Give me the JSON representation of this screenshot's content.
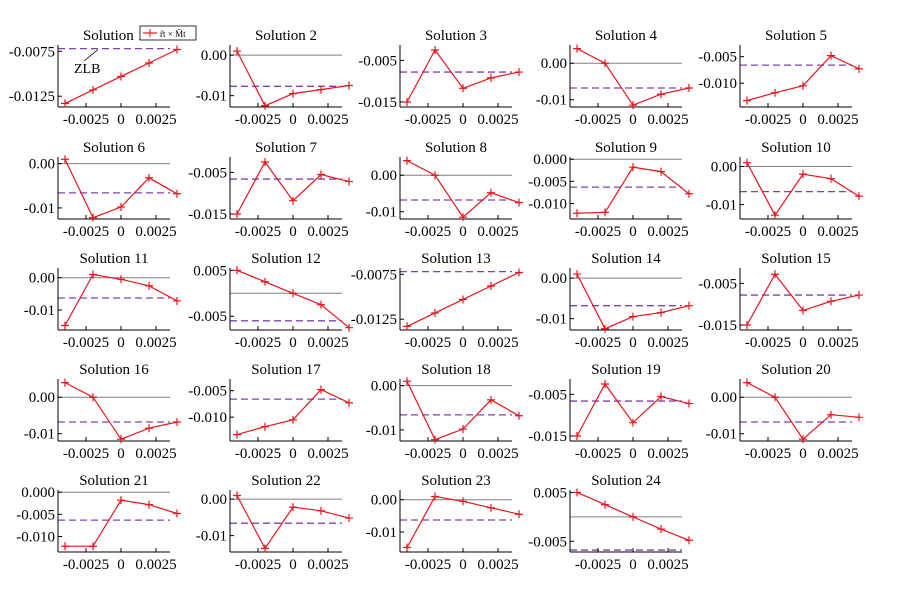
{
  "chart_data": {
    "type": "line",
    "layout": "grid of small multiples, 5 columns",
    "grid": false,
    "colors": {
      "series": "#e8151b",
      "zlb": "#8040b0",
      "zero_line": "#808080",
      "axis": "#000000"
    },
    "legend": {
      "text": "r̃t × M̃t",
      "location": "Solution 1 panel, top-right"
    },
    "annotation": {
      "text": "ZLB",
      "panel": 0
    },
    "x": [
      -0.004,
      -0.002,
      0.0,
      0.002,
      0.004
    ],
    "panels": [
      {
        "title": "Solution 1",
        "y": [
          -0.0133,
          -0.0118,
          -0.0103,
          -0.0088,
          -0.0073
        ],
        "zlb": -0.0072,
        "ylim": [
          -0.0137,
          -0.0068
        ],
        "yticks": [
          -0.0075,
          -0.0125
        ],
        "ytick_labels": [
          "-0.0075",
          "-0.0125"
        ],
        "xticks": [
          -0.0025,
          0,
          0.0025
        ],
        "xtick_labels": [
          "-0.0025",
          "0",
          "0.0025"
        ]
      },
      {
        "title": "Solution 2",
        "y": [
          0.001,
          -0.0125,
          -0.0095,
          -0.0085,
          -0.0075
        ],
        "zlb": -0.0077,
        "ylim": [
          -0.0128,
          0.0025
        ],
        "yticks": [
          0.0,
          -0.01
        ],
        "ytick_labels": [
          "0.00",
          "-0.01"
        ],
        "xticks": [
          -0.0025,
          0,
          0.0025
        ],
        "xtick_labels": [
          "-0.0025",
          "0",
          "0.0025"
        ]
      },
      {
        "title": "Solution 3",
        "y": [
          -0.015,
          -0.0025,
          -0.0117,
          -0.0092,
          -0.0078
        ],
        "zlb": -0.0078,
        "ylim": [
          -0.0162,
          -0.0013
        ],
        "yticks": [
          -0.005,
          -0.015
        ],
        "ytick_labels": [
          "-0.005",
          "-0.015"
        ],
        "xticks": [
          -0.0025,
          0,
          0.0025
        ],
        "xtick_labels": [
          "-0.0025",
          "0",
          "0.0025"
        ]
      },
      {
        "title": "Solution 4",
        "y": [
          0.004,
          0.0,
          -0.0115,
          -0.0085,
          -0.0068
        ],
        "zlb": -0.0068,
        "ylim": [
          -0.012,
          0.005
        ],
        "yticks": [
          0.0,
          -0.01
        ],
        "ytick_labels": [
          "0.00",
          "-0.01"
        ],
        "xticks": [
          -0.0025,
          0,
          0.0025
        ],
        "xtick_labels": [
          "-0.0025",
          "0",
          "0.0025"
        ]
      },
      {
        "title": "Solution 5",
        "y": [
          -0.0133,
          -0.0118,
          -0.0105,
          -0.0048,
          -0.0073
        ],
        "zlb": -0.0066,
        "ylim": [
          -0.0145,
          -0.0028
        ],
        "yticks": [
          -0.005,
          -0.01
        ],
        "ytick_labels": [
          "-0.005",
          "-0.010"
        ],
        "xticks": [
          -0.0025,
          0,
          0.0025
        ],
        "xtick_labels": [
          "-0.0025",
          "0",
          "0.0025"
        ]
      },
      {
        "title": "Solution 6",
        "y": [
          0.001,
          -0.0122,
          -0.0098,
          -0.0032,
          -0.0068
        ],
        "zlb": -0.0066,
        "ylim": [
          -0.0125,
          0.0015
        ],
        "yticks": [
          0.0,
          -0.01
        ],
        "ytick_labels": [
          "0.00",
          "-0.01"
        ],
        "xticks": [
          -0.0025,
          0,
          0.0025
        ],
        "xtick_labels": [
          "-0.0025",
          "0",
          "0.0025"
        ]
      },
      {
        "title": "Solution 7",
        "y": [
          -0.015,
          -0.0025,
          -0.0118,
          -0.0055,
          -0.0072
        ],
        "zlb": -0.0066,
        "ylim": [
          -0.0162,
          -0.0013
        ],
        "yticks": [
          -0.005,
          -0.015
        ],
        "ytick_labels": [
          "-0.005",
          "-0.015"
        ],
        "xticks": [
          -0.0025,
          0,
          0.0025
        ],
        "xtick_labels": [
          "-0.0025",
          "0",
          "0.0025"
        ]
      },
      {
        "title": "Solution 8",
        "y": [
          0.004,
          0.0,
          -0.0115,
          -0.0048,
          -0.0075
        ],
        "zlb": -0.0068,
        "ylim": [
          -0.012,
          0.005
        ],
        "yticks": [
          0.0,
          -0.01
        ],
        "ytick_labels": [
          "0.00",
          "-0.01"
        ],
        "xticks": [
          -0.0025,
          0,
          0.0025
        ],
        "xtick_labels": [
          "-0.0025",
          "0",
          "0.0025"
        ]
      },
      {
        "title": "Solution 9",
        "y": [
          -0.0122,
          -0.012,
          -0.0018,
          -0.0028,
          -0.0078
        ],
        "zlb": -0.0063,
        "ylim": [
          -0.0135,
          0.0005
        ],
        "yticks": [
          0.0,
          -0.005,
          -0.01
        ],
        "ytick_labels": [
          "0.000",
          "-0.005",
          "-0.010"
        ],
        "xticks": [
          -0.0025,
          0,
          0.0025
        ],
        "xtick_labels": [
          "-0.0025",
          "0",
          "0.0025"
        ]
      },
      {
        "title": "Solution 10",
        "y": [
          0.001,
          -0.0128,
          -0.002,
          -0.0032,
          -0.0078
        ],
        "zlb": -0.0066,
        "ylim": [
          -0.0138,
          0.0025
        ],
        "yticks": [
          0.0,
          -0.01
        ],
        "ytick_labels": [
          "0.00",
          "-0.01"
        ],
        "xticks": [
          -0.0025,
          0,
          0.0025
        ],
        "xtick_labels": [
          "-0.0025",
          "0",
          "0.0025"
        ]
      },
      {
        "title": "Solution 11",
        "y": [
          -0.0148,
          0.001,
          -0.0005,
          -0.0025,
          -0.0072
        ],
        "zlb": -0.0063,
        "ylim": [
          -0.0162,
          0.003
        ],
        "yticks": [
          0.0,
          -0.01
        ],
        "ytick_labels": [
          "0.00",
          "-0.01"
        ],
        "xticks": [
          -0.0025,
          0,
          0.0025
        ],
        "xtick_labels": [
          "-0.0025",
          "0",
          "0.0025"
        ]
      },
      {
        "title": "Solution 12",
        "y": [
          0.005,
          0.0025,
          0.0,
          -0.0025,
          -0.0075
        ],
        "zlb": -0.006,
        "ylim": [
          -0.008,
          0.0055
        ],
        "yticks": [
          0.005,
          -0.005
        ],
        "ytick_labels": [
          "0.005",
          "-0.005"
        ],
        "xticks": [
          -0.0025,
          0,
          0.0025
        ],
        "xtick_labels": [
          "-0.0025",
          "0",
          "0.0025"
        ]
      },
      {
        "title": "Solution 13",
        "y": [
          -0.0133,
          -0.0118,
          -0.0103,
          -0.0088,
          -0.0073
        ],
        "zlb": -0.0072,
        "ylim": [
          -0.0137,
          -0.0068
        ],
        "yticks": [
          -0.0075,
          -0.0125
        ],
        "ytick_labels": [
          "-0.0075",
          "-0.0125"
        ],
        "xticks": [
          -0.0025,
          0,
          0.0025
        ],
        "xtick_labels": [
          "-0.0025",
          "0",
          "0.0025"
        ]
      },
      {
        "title": "Solution 14",
        "y": [
          0.001,
          -0.0125,
          -0.0095,
          -0.0085,
          -0.0068
        ],
        "zlb": -0.0068,
        "ylim": [
          -0.0128,
          0.0025
        ],
        "yticks": [
          0.0,
          -0.01
        ],
        "ytick_labels": [
          "0.00",
          "-0.01"
        ],
        "xticks": [
          -0.0025,
          0,
          0.0025
        ],
        "xtick_labels": [
          "-0.0025",
          "0",
          "0.0025"
        ]
      },
      {
        "title": "Solution 15",
        "y": [
          -0.015,
          -0.0028,
          -0.0115,
          -0.0093,
          -0.0078
        ],
        "zlb": -0.0078,
        "ylim": [
          -0.0162,
          -0.0013
        ],
        "yticks": [
          -0.005,
          -0.015
        ],
        "ytick_labels": [
          "-0.005",
          "-0.015"
        ],
        "xticks": [
          -0.0025,
          0,
          0.0025
        ],
        "xtick_labels": [
          "-0.0025",
          "0",
          "0.0025"
        ]
      },
      {
        "title": "Solution 16",
        "y": [
          0.004,
          0.0,
          -0.0115,
          -0.0085,
          -0.0068
        ],
        "zlb": -0.0068,
        "ylim": [
          -0.012,
          0.005
        ],
        "yticks": [
          0.0,
          -0.01
        ],
        "ytick_labels": [
          "0.00",
          "-0.01"
        ],
        "xticks": [
          -0.0025,
          0,
          0.0025
        ],
        "xtick_labels": [
          "-0.0025",
          "0",
          "0.0025"
        ]
      },
      {
        "title": "Solution 17",
        "y": [
          -0.0133,
          -0.0118,
          -0.0105,
          -0.0048,
          -0.0073
        ],
        "zlb": -0.0066,
        "ylim": [
          -0.0145,
          -0.0028
        ],
        "yticks": [
          -0.005,
          -0.01
        ],
        "ytick_labels": [
          "-0.005",
          "-0.010"
        ],
        "xticks": [
          -0.0025,
          0,
          0.0025
        ],
        "xtick_labels": [
          "-0.0025",
          "0",
          "0.0025"
        ]
      },
      {
        "title": "Solution 18",
        "y": [
          0.001,
          -0.0122,
          -0.0098,
          -0.0032,
          -0.0068
        ],
        "zlb": -0.0066,
        "ylim": [
          -0.0125,
          0.0015
        ],
        "yticks": [
          0.0,
          -0.01
        ],
        "ytick_labels": [
          "0.00",
          "-0.01"
        ],
        "xticks": [
          -0.0025,
          0,
          0.0025
        ],
        "xtick_labels": [
          "-0.0025",
          "0",
          "0.0025"
        ]
      },
      {
        "title": "Solution 19",
        "y": [
          -0.015,
          -0.0025,
          -0.0118,
          -0.0055,
          -0.0072
        ],
        "zlb": -0.0066,
        "ylim": [
          -0.0162,
          -0.0013
        ],
        "yticks": [
          -0.005,
          -0.015
        ],
        "ytick_labels": [
          "-0.005",
          "-0.015"
        ],
        "xticks": [
          -0.0025,
          0,
          0.0025
        ],
        "xtick_labels": [
          "-0.0025",
          "0",
          "0.0025"
        ]
      },
      {
        "title": "Solution 20",
        "y": [
          0.004,
          0.0,
          -0.0115,
          -0.0048,
          -0.0055
        ],
        "zlb": -0.0068,
        "ylim": [
          -0.012,
          0.005
        ],
        "yticks": [
          0.0,
          -0.01
        ],
        "ytick_labels": [
          "0.00",
          "-0.01"
        ],
        "xticks": [
          -0.0025,
          0,
          0.0025
        ],
        "xtick_labels": [
          "-0.0025",
          "0",
          "0.0025"
        ]
      },
      {
        "title": "Solution 21",
        "y": [
          -0.0122,
          -0.0122,
          -0.0018,
          -0.0028,
          -0.0048
        ],
        "zlb": -0.0063,
        "ylim": [
          -0.0135,
          0.0005
        ],
        "yticks": [
          0.0,
          -0.005,
          -0.01
        ],
        "ytick_labels": [
          "0.000",
          "-0.005",
          "-0.010"
        ],
        "xticks": [
          -0.0025,
          0,
          0.0025
        ],
        "xtick_labels": [
          "-0.0025",
          "0",
          "0.0025"
        ]
      },
      {
        "title": "Solution 22",
        "y": [
          0.001,
          -0.0135,
          -0.0022,
          -0.0032,
          -0.0052
        ],
        "zlb": -0.0066,
        "ylim": [
          -0.0145,
          0.0025
        ],
        "yticks": [
          0.0,
          -0.01
        ],
        "ytick_labels": [
          "0.00",
          "-0.01"
        ],
        "xticks": [
          -0.0025,
          0,
          0.0025
        ],
        "xtick_labels": [
          "-0.0025",
          "0",
          "0.0025"
        ]
      },
      {
        "title": "Solution 23",
        "y": [
          -0.0148,
          0.001,
          -0.0005,
          -0.0025,
          -0.0045
        ],
        "zlb": -0.0063,
        "ylim": [
          -0.0162,
          0.003
        ],
        "yticks": [
          0.0,
          -0.01
        ],
        "ytick_labels": [
          "0.00",
          "-0.01"
        ],
        "xticks": [
          -0.0025,
          0,
          0.0025
        ],
        "xtick_labels": [
          "-0.0025",
          "0",
          "0.0025"
        ]
      },
      {
        "title": "Solution 24",
        "y": [
          0.005,
          0.0025,
          0.0,
          -0.0025,
          -0.0048
        ],
        "zlb": -0.0068,
        "ylim": [
          -0.0072,
          0.0055
        ],
        "yticks": [
          0.005,
          -0.005
        ],
        "ytick_labels": [
          "0.005",
          "-0.005"
        ],
        "xticks": [
          -0.0025,
          0,
          0.0025
        ],
        "xtick_labels": [
          "-0.0025",
          "0",
          "0.0025"
        ]
      }
    ]
  }
}
